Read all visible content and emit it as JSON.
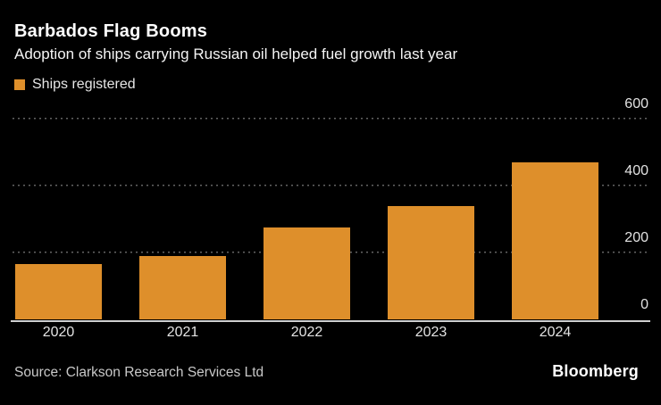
{
  "header": {
    "title": "Barbados Flag Booms",
    "subtitle": "Adoption of ships carrying Russian oil helped fuel growth last year"
  },
  "legend": {
    "label": "Ships registered",
    "swatch_color": "#de8f2b"
  },
  "chart_data": {
    "type": "bar",
    "title": "Barbados Flag Booms",
    "subtitle": "Adoption of ships carrying Russian oil helped fuel growth last year",
    "series_name": "Ships registered",
    "categories": [
      "2020",
      "2021",
      "2022",
      "2023",
      "2024"
    ],
    "values": [
      165,
      190,
      275,
      340,
      470
    ],
    "xlabel": "",
    "ylabel": "",
    "ylim": [
      0,
      600
    ],
    "yticks": [
      0,
      200,
      400,
      600
    ],
    "ytick_side": "right",
    "grid": "horizontal-dotted",
    "legend_position": "top-left",
    "bar_color": "#de8f2b"
  },
  "footer": {
    "source": "Source: Clarkson Research Services Ltd",
    "brand": "Bloomberg"
  },
  "colors": {
    "background": "#000000",
    "bar": "#de8f2b",
    "title_text": "#ffffff",
    "muted_text": "#c9c9c9",
    "tick_text": "#e3e3e3",
    "gridline": "#636363",
    "axis_line": "#cfcfcf"
  }
}
